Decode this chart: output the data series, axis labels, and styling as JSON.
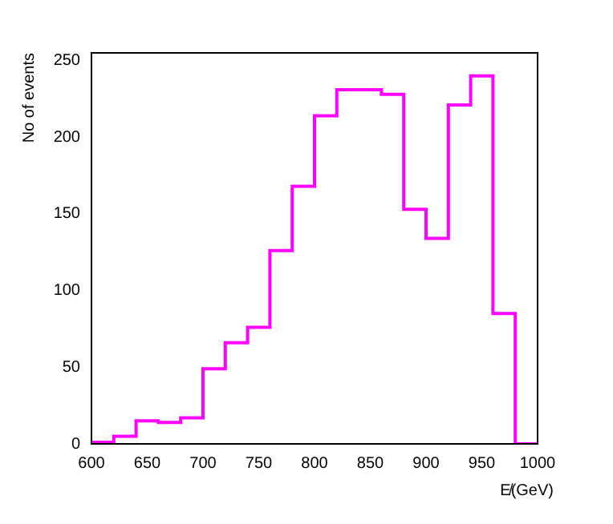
{
  "chart_data": {
    "type": "histogram",
    "xlabel": "E̸(GeV)",
    "ylabel": "No of events",
    "bins": [
      600,
      620,
      640,
      660,
      680,
      700,
      720,
      740,
      760,
      780,
      800,
      820,
      840,
      860,
      880,
      900,
      920,
      940,
      960,
      980,
      1000
    ],
    "values": [
      1,
      5,
      15,
      14,
      17,
      49,
      66,
      76,
      126,
      168,
      214,
      231,
      231,
      228,
      153,
      134,
      221,
      240,
      85,
      0
    ],
    "color": "#ff00ff",
    "xlim": [
      600,
      1000
    ],
    "xticks": [
      600,
      650,
      700,
      750,
      800,
      850,
      900,
      950,
      1000
    ],
    "ylim": [
      0,
      255
    ],
    "yticks": [
      0,
      50,
      100,
      150,
      200,
      250
    ],
    "grid": false,
    "legend": false
  }
}
